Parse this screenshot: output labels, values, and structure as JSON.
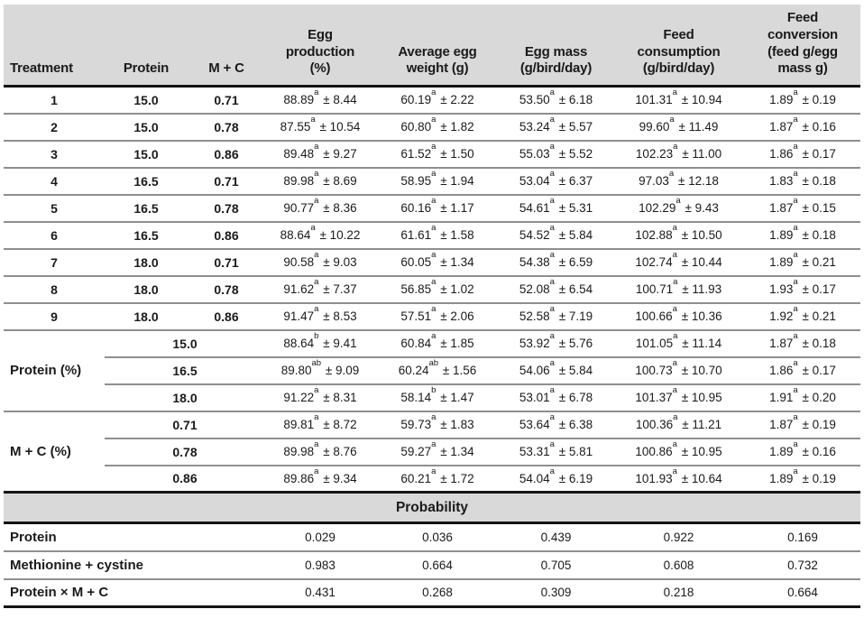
{
  "colors": {
    "header_bg": "#d9d9d9",
    "rule_dark": "#141414",
    "rule_gray": "#8f8f8f",
    "text": "#1a1a1a",
    "background": "#ffffff"
  },
  "table": {
    "columns": [
      {
        "id": "treatment",
        "label": "Treatment"
      },
      {
        "id": "protein",
        "label": "Protein"
      },
      {
        "id": "mc",
        "label": "M + C"
      },
      {
        "id": "egg-production",
        "label": "Egg\nproduction\n(%)"
      },
      {
        "id": "egg-weight",
        "label": "Average egg\nweight (g)"
      },
      {
        "id": "egg-mass",
        "label": "Egg mass\n(g/bird/day)"
      },
      {
        "id": "feed-consumption",
        "label": "Feed\nconsumption\n(g/bird/day)"
      },
      {
        "id": "feed-conversion",
        "label": "Feed\nconversion\n(feed g/egg\nmass g)"
      }
    ],
    "treatment_rows": [
      {
        "treatment": "1",
        "protein": "15.0",
        "mc": "0.71",
        "egg_production": "88.89^a ± 8.44",
        "egg_weight": "60.19^a ± 2.22",
        "egg_mass": "53.50^a ± 6.18",
        "feed_consumption": "101.31^a ± 10.94",
        "feed_conversion": "1.89^a ± 0.19"
      },
      {
        "treatment": "2",
        "protein": "15.0",
        "mc": "0.78",
        "egg_production": "87.55^a ± 10.54",
        "egg_weight": "60.80^a ± 1.82",
        "egg_mass": "53.24^a ± 5.57",
        "feed_consumption": "99.60^a ± 11.49",
        "feed_conversion": "1.87^a ± 0.16"
      },
      {
        "treatment": "3",
        "protein": "15.0",
        "mc": "0.86",
        "egg_production": "89.48^a ± 9.27",
        "egg_weight": "61.52^a ± 1.50",
        "egg_mass": "55.03^a ± 5.52",
        "feed_consumption": "102.23^a ± 11.00",
        "feed_conversion": "1.86^a ± 0.17"
      },
      {
        "treatment": "4",
        "protein": "16.5",
        "mc": "0.71",
        "egg_production": "89.98^a ± 8.69",
        "egg_weight": "58.95^a ± 1.94",
        "egg_mass": "53.04^a ± 6.37",
        "feed_consumption": "97.03^a ± 12.18",
        "feed_conversion": "1.83^a ± 0.18"
      },
      {
        "treatment": "5",
        "protein": "16.5",
        "mc": "0.78",
        "egg_production": "90.77^a ± 8.36",
        "egg_weight": "60.16^a ± 1.17",
        "egg_mass": "54.61^a ± 5.31",
        "feed_consumption": "102.29^a ± 9.43",
        "feed_conversion": "1.87^a ± 0.15"
      },
      {
        "treatment": "6",
        "protein": "16.5",
        "mc": "0.86",
        "egg_production": "88.64^a ± 10.22",
        "egg_weight": "61.61^a ± 1.58",
        "egg_mass": "54.52^a ± 5.84",
        "feed_consumption": "102.88^a ± 10.50",
        "feed_conversion": "1.89^a ± 0.18"
      },
      {
        "treatment": "7",
        "protein": "18.0",
        "mc": "0.71",
        "egg_production": "90.58^a ± 9.03",
        "egg_weight": "60.05^a ± 1.34",
        "egg_mass": "54.38^a ± 6.59",
        "feed_consumption": "102.74^a ± 10.44",
        "feed_conversion": "1.89^a ± 0.21"
      },
      {
        "treatment": "8",
        "protein": "18.0",
        "mc": "0.78",
        "egg_production": "91.62^a ± 7.37",
        "egg_weight": "56.85^a ± 1.02",
        "egg_mass": "52.08^a ± 6.54",
        "feed_consumption": "100.71^a ± 11.93",
        "feed_conversion": "1.93^a ± 0.17"
      },
      {
        "treatment": "9",
        "protein": "18.0",
        "mc": "0.86",
        "egg_production": "91.47^a ± 8.53",
        "egg_weight": "57.51^a ± 2.06",
        "egg_mass": "52.58^a ± 7.19",
        "feed_consumption": "100.66^a ± 10.36",
        "feed_conversion": "1.92^a ± 0.21"
      }
    ],
    "protein_group": {
      "label": "Protein (%)",
      "rows": [
        {
          "level": "15.0",
          "egg_production": "88.64^b ± 9.41",
          "egg_weight": "60.84^a ± 1.85",
          "egg_mass": "53.92^a ± 5.76",
          "feed_consumption": "101.05^a ± 11.14",
          "feed_conversion": "1.87^a ± 0.18"
        },
        {
          "level": "16.5",
          "egg_production": "89.80^ab ± 9.09",
          "egg_weight": "60.24^ab ± 1.56",
          "egg_mass": "54.06^a ± 5.84",
          "feed_consumption": "100.73^a ± 10.70",
          "feed_conversion": "1.86^a ± 0.17"
        },
        {
          "level": "18.0",
          "egg_production": "91.22^a ± 8.31",
          "egg_weight": "58.14^b ± 1.47",
          "egg_mass": "53.01^a ± 6.78",
          "feed_consumption": "101.37^a ± 10.95",
          "feed_conversion": "1.91^a ± 0.20"
        }
      ]
    },
    "mc_group": {
      "label": "M + C (%)",
      "rows": [
        {
          "level": "0.71",
          "egg_production": "89.81^a ± 8.72",
          "egg_weight": "59.73^a ± 1.83",
          "egg_mass": "53.64^a ± 6.38",
          "feed_consumption": "100.36^a ± 11.21",
          "feed_conversion": "1.87^a ± 0.19"
        },
        {
          "level": "0.78",
          "egg_production": "89.98^a ± 8.76",
          "egg_weight": "59.27^a ± 1.34",
          "egg_mass": "53.31^a ± 5.81",
          "feed_consumption": "100.86^a ± 10.95",
          "feed_conversion": "1.89^a ± 0.16"
        },
        {
          "level": "0.86",
          "egg_production": "89.86^a ± 9.34",
          "egg_weight": "60.21^a ± 1.72",
          "egg_mass": "54.04^a ± 6.19",
          "feed_consumption": "101.93^a ± 10.64",
          "feed_conversion": "1.89^a ± 0.19"
        }
      ]
    },
    "probability_section": {
      "header": "Probability",
      "rows": [
        {
          "label": "Protein",
          "values": [
            "0.029",
            "0.036",
            "0.439",
            "0.922",
            "0.169"
          ]
        },
        {
          "label": "Methionine + cystine",
          "values": [
            "0.983",
            "0.664",
            "0.705",
            "0.608",
            "0.732"
          ]
        },
        {
          "label": "Protein × M + C",
          "values": [
            "0.431",
            "0.268",
            "0.309",
            "0.218",
            "0.664"
          ]
        }
      ]
    }
  }
}
